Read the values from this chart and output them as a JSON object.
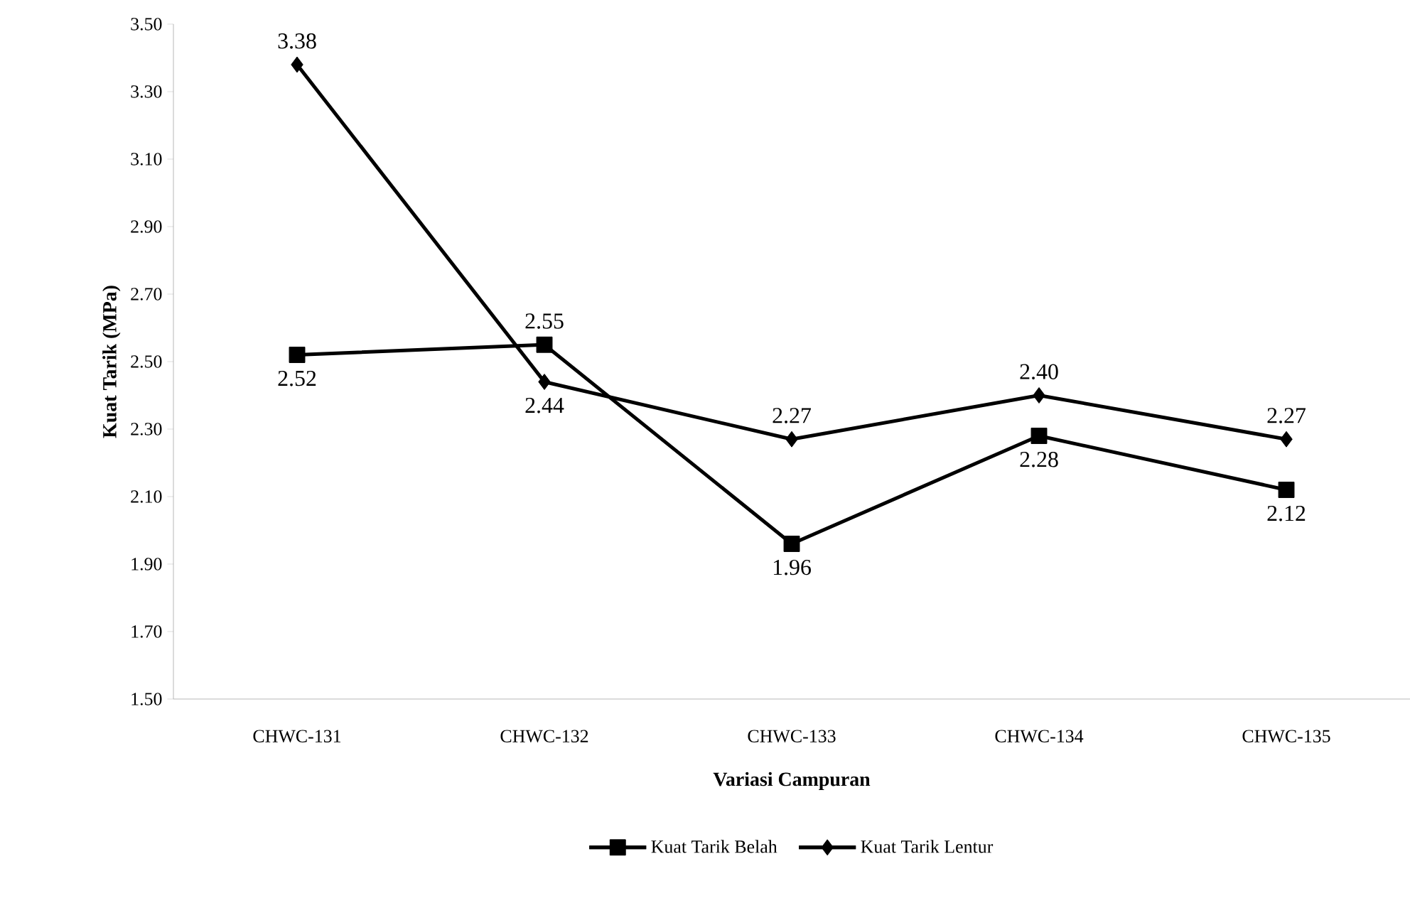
{
  "chart_data": {
    "type": "line",
    "xlabel": "Variasi Campuran",
    "ylabel": "Kuat Tarik (MPa)",
    "categories": [
      "CHWC-131",
      "CHWC-132",
      "CHWC-133",
      "CHWC-134",
      "CHWC-135"
    ],
    "ylim": [
      1.5,
      3.5
    ],
    "yticks": [
      {
        "value": 1.5,
        "label": "1.50"
      },
      {
        "value": 1.7,
        "label": "1.70"
      },
      {
        "value": 1.9,
        "label": "1.90"
      },
      {
        "value": 2.1,
        "label": "2.10"
      },
      {
        "value": 2.3,
        "label": "2.30"
      },
      {
        "value": 2.5,
        "label": "2.50"
      },
      {
        "value": 2.7,
        "label": "2.70"
      },
      {
        "value": 2.9,
        "label": "2.90"
      },
      {
        "value": 3.1,
        "label": "3.10"
      },
      {
        "value": 3.3,
        "label": "3.30"
      },
      {
        "value": 3.5,
        "label": "3.50"
      }
    ],
    "grid": false,
    "legend": "bottom",
    "line_style": "solid",
    "series": [
      {
        "name": "Kuat Tarik Belah",
        "color": "#000000",
        "marker": "square",
        "values": [
          2.52,
          2.55,
          1.96,
          2.28,
          2.12
        ],
        "value_labels": [
          "2.52",
          "2.55",
          "1.96",
          "2.28",
          "2.12"
        ]
      },
      {
        "name": "Kuat Tarik Lentur",
        "color": "#000000",
        "marker": "diamond",
        "values": [
          3.38,
          2.44,
          2.27,
          2.4,
          2.27
        ],
        "value_labels": [
          "3.38",
          "2.44",
          "2.27",
          "2.40",
          "2.27"
        ]
      }
    ]
  }
}
